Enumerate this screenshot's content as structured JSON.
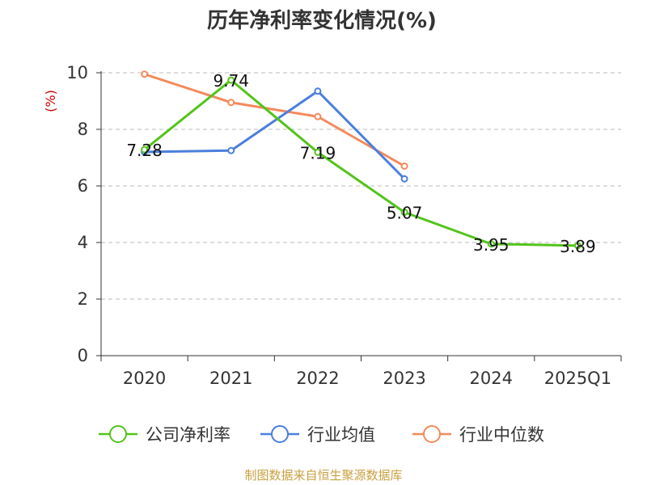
{
  "chart_data": {
    "type": "line",
    "title": "历年净利率变化情况(%)",
    "ylabel": "(%)",
    "xlabel": "",
    "categories": [
      "2020",
      "2021",
      "2022",
      "2023",
      "2024",
      "2025Q1"
    ],
    "ylim": [
      0,
      10
    ],
    "yticks": [
      "0",
      "2",
      "4",
      "6",
      "8",
      "10"
    ],
    "grid": true,
    "legend_position": "bottom",
    "series": [
      {
        "name": "公司净利率",
        "color": "#52c41a",
        "values": [
          7.28,
          9.74,
          7.19,
          5.07,
          3.95,
          3.89
        ],
        "labels": [
          "7.28",
          "9.74",
          "7.19",
          "5.07",
          "3.95",
          "3.89"
        ]
      },
      {
        "name": "行业均值",
        "color": "#4a7fdc",
        "values": [
          7.2,
          7.25,
          9.35,
          6.25,
          null,
          null
        ]
      },
      {
        "name": "行业中位数",
        "color": "#f5895a",
        "values": [
          9.95,
          8.95,
          8.45,
          6.7,
          null,
          null
        ]
      }
    ]
  },
  "source": "制图数据来自恒生聚源数据库",
  "colors": {
    "axis": "#333333",
    "grid": "#bbbbbb",
    "ylabel": "#cc0000",
    "source": "#c8a040"
  }
}
